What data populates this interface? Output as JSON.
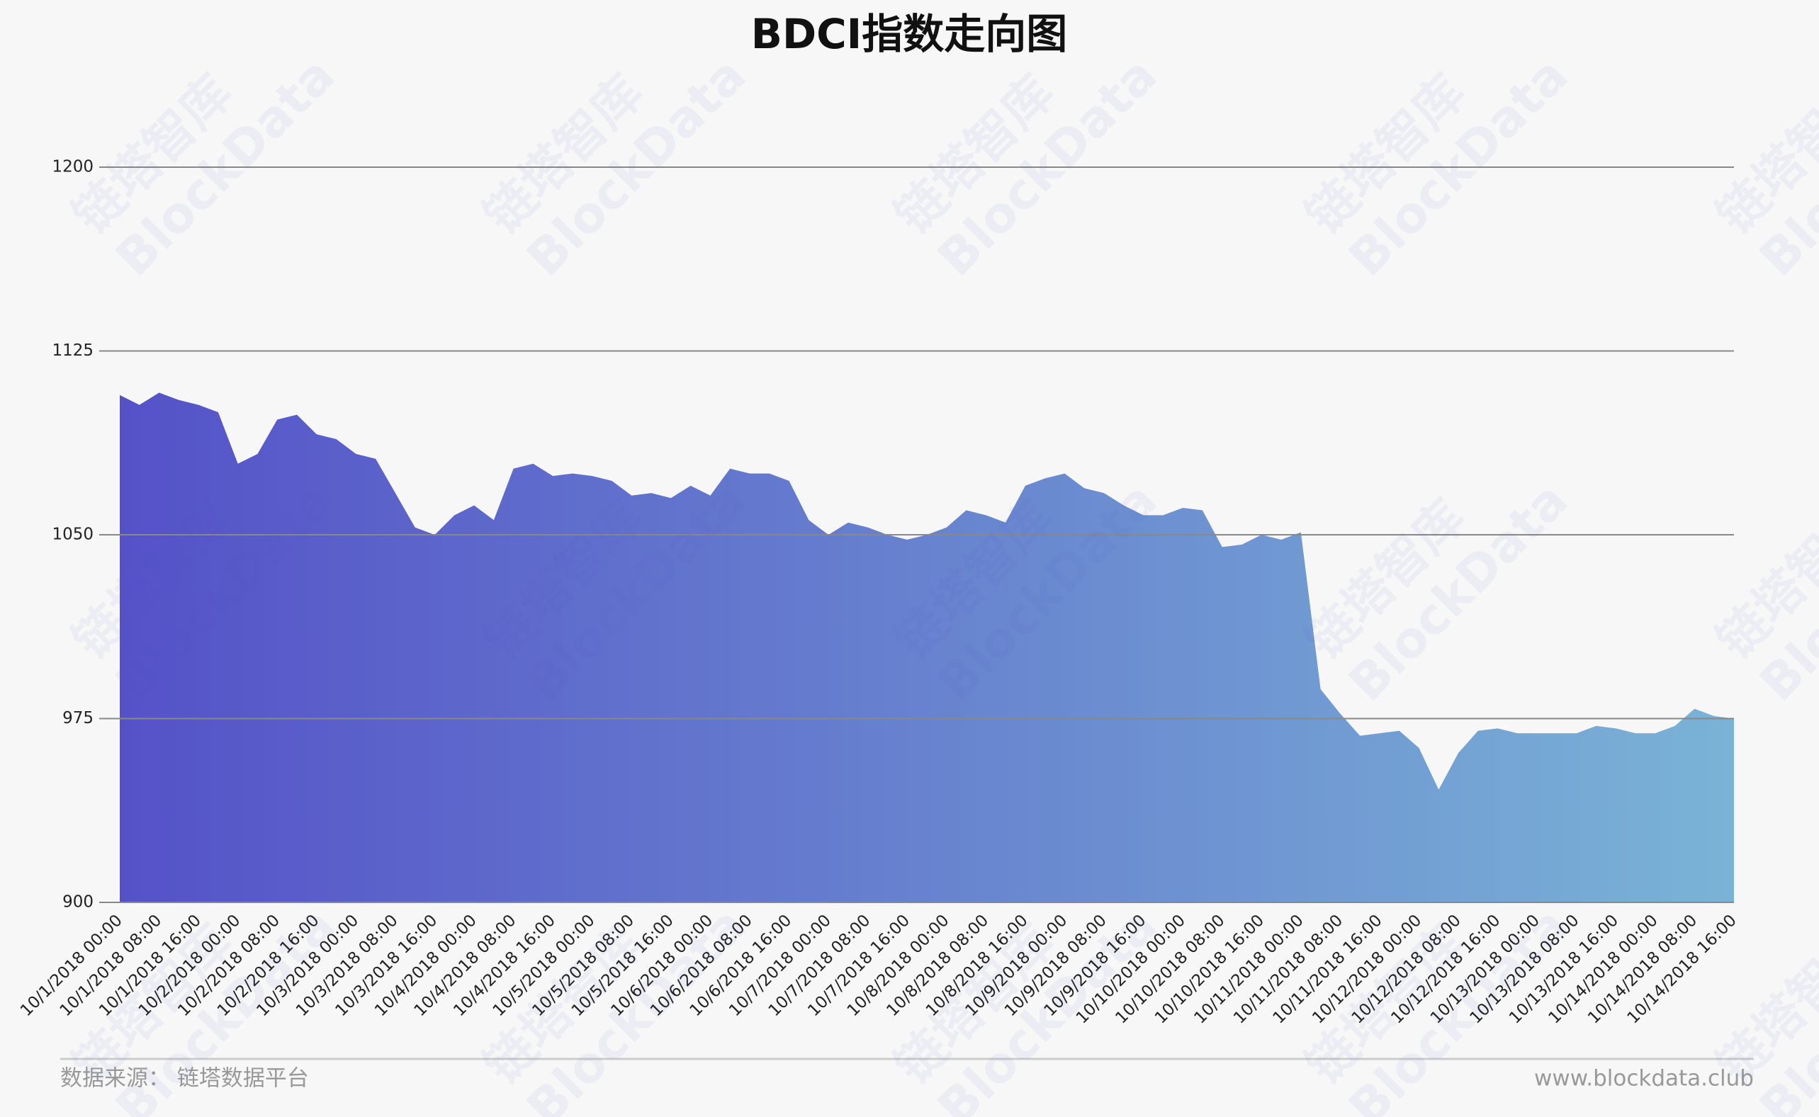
{
  "chart_data": {
    "type": "area",
    "title": "BDCI指数走向图",
    "categories": [
      "10/1/2018 00:00",
      null,
      "10/1/2018 08:00",
      null,
      "10/1/2018 16:00",
      null,
      "10/2/2018 00:00",
      null,
      "10/2/2018 08:00",
      null,
      "10/2/2018 16:00",
      null,
      "10/3/2018 00:00",
      null,
      "10/3/2018 08:00",
      null,
      "10/3/2018 16:00",
      null,
      "10/4/2018 00:00",
      null,
      "10/4/2018 08:00",
      null,
      "10/4/2018 16:00",
      null,
      "10/5/2018 00:00",
      null,
      "10/5/2018 08:00",
      null,
      "10/5/2018 16:00",
      null,
      "10/6/2018 00:00",
      null,
      "10/6/2018 08:00",
      null,
      "10/6/2018 16:00",
      null,
      "10/7/2018 00:00",
      null,
      "10/7/2018 08:00",
      null,
      "10/7/2018 16:00",
      null,
      "10/8/2018 00:00",
      null,
      "10/8/2018 08:00",
      null,
      "10/8/2018 16:00",
      null,
      "10/9/2018 00:00",
      null,
      "10/9/2018 08:00",
      null,
      "10/9/2018 16:00",
      null,
      "10/10/2018 00:00",
      null,
      "10/10/2018 08:00",
      null,
      "10/10/2018 16:00",
      null,
      "10/11/2018 00:00",
      null,
      "10/11/2018 08:00",
      null,
      "10/11/2018 16:00",
      null,
      "10/12/2018 00:00",
      null,
      "10/12/2018 08:00",
      null,
      "10/12/2018 16:00",
      null,
      "10/13/2018 00:00",
      null,
      "10/13/2018 08:00",
      null,
      "10/13/2018 16:00",
      null,
      "10/14/2018 00:00",
      null,
      "10/14/2018 08:00",
      null,
      "10/14/2018 16:00"
    ],
    "values": [
      1107,
      1103,
      1108,
      1105,
      1103,
      1100,
      1079,
      1083,
      1097,
      1099,
      1091,
      1089,
      1083,
      1081,
      1067,
      1053,
      1050,
      1058,
      1062,
      1056,
      1077,
      1079,
      1074,
      1075,
      1074,
      1072,
      1066,
      1067,
      1065,
      1070,
      1066,
      1077,
      1075,
      1075,
      1072,
      1056,
      1050,
      1055,
      1053,
      1050,
      1048,
      1050,
      1053,
      1060,
      1058,
      1055,
      1070,
      1073,
      1075,
      1069,
      1067,
      1062,
      1058,
      1058,
      1061,
      1060,
      1045,
      1046,
      1050,
      1048,
      1051,
      987,
      977,
      968,
      969,
      970,
      963,
      946,
      961,
      970,
      971,
      969,
      969,
      969,
      969,
      972,
      971,
      969,
      969,
      972,
      979,
      976,
      975
    ],
    "colors": [
      "#5552c8",
      "#7ab3d6"
    ],
    "ylim": [
      900,
      1200
    ],
    "yticks": [
      900,
      975,
      1050,
      1125,
      1200
    ],
    "grid": true,
    "source": "数据来源：  链塔数据平台",
    "website": "www.blockdata.club",
    "watermark": [
      "链塔智库",
      "BlockData"
    ]
  }
}
